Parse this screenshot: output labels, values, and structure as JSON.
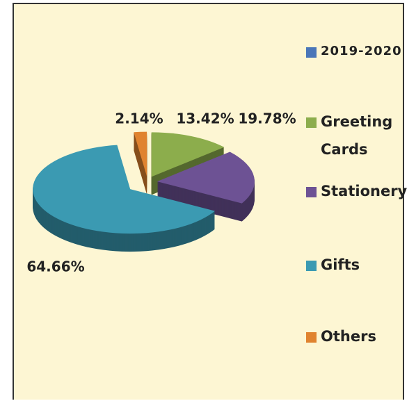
{
  "chart_data": {
    "type": "pie",
    "categories": [
      "Greeting Cards",
      "Stationery",
      "Gifts",
      "Others"
    ],
    "series": [
      {
        "name": "2019-2020",
        "color": "#4a76b8",
        "values": [
          13.42,
          19.78,
          64.66,
          2.14
        ],
        "value_labels": [
          "13.42%",
          "19.78%",
          "64.66%",
          "2.14%"
        ]
      }
    ],
    "colors": [
      "#8cad4c",
      "#6d5294",
      "#3b9ab2",
      "#e0832f"
    ],
    "legend": "right"
  }
}
